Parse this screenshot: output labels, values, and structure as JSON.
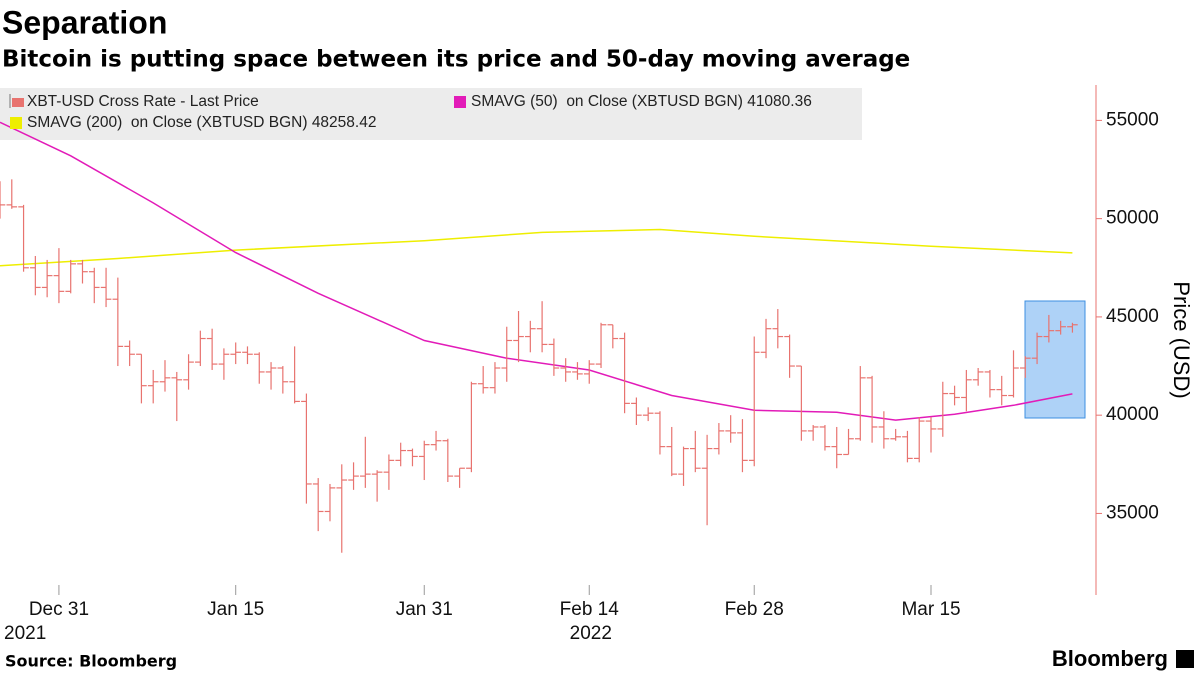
{
  "chart_data": {
    "type": "ohlc",
    "title": "Separation",
    "subtitle": "Bitcoin is putting space between its price and 50-day moving average",
    "y_label": "Price (USD)",
    "source": "Source: Bloomberg",
    "logo": "Bloomberg",
    "x": [
      "2021-12-26",
      "2021-12-27",
      "2021-12-28",
      "2021-12-29",
      "2021-12-30",
      "2021-12-31",
      "2022-01-01",
      "2022-01-02",
      "2022-01-03",
      "2022-01-04",
      "2022-01-05",
      "2022-01-06",
      "2022-01-07",
      "2022-01-08",
      "2022-01-09",
      "2022-01-10",
      "2022-01-11",
      "2022-01-12",
      "2022-01-13",
      "2022-01-14",
      "2022-01-15",
      "2022-01-16",
      "2022-01-17",
      "2022-01-18",
      "2022-01-19",
      "2022-01-20",
      "2022-01-21",
      "2022-01-22",
      "2022-01-23",
      "2022-01-24",
      "2022-01-25",
      "2022-01-26",
      "2022-01-27",
      "2022-01-28",
      "2022-01-29",
      "2022-01-30",
      "2022-01-31",
      "2022-02-01",
      "2022-02-02",
      "2022-02-03",
      "2022-02-04",
      "2022-02-05",
      "2022-02-06",
      "2022-02-07",
      "2022-02-08",
      "2022-02-09",
      "2022-02-10",
      "2022-02-11",
      "2022-02-12",
      "2022-02-13",
      "2022-02-14",
      "2022-02-15",
      "2022-02-16",
      "2022-02-17",
      "2022-02-18",
      "2022-02-19",
      "2022-02-20",
      "2022-02-21",
      "2022-02-22",
      "2022-02-23",
      "2022-02-24",
      "2022-02-25",
      "2022-02-26",
      "2022-02-27",
      "2022-02-28",
      "2022-03-01",
      "2022-03-02",
      "2022-03-03",
      "2022-03-04",
      "2022-03-05",
      "2022-03-06",
      "2022-03-07",
      "2022-03-08",
      "2022-03-09",
      "2022-03-10",
      "2022-03-11",
      "2022-03-12",
      "2022-03-13",
      "2022-03-14",
      "2022-03-15",
      "2022-03-16",
      "2022-03-17",
      "2022-03-18",
      "2022-03-19",
      "2022-03-20",
      "2022-03-21",
      "2022-03-22",
      "2022-03-23",
      "2022-03-24",
      "2022-03-25",
      "2022-03-26",
      "2022-03-27"
    ],
    "series": [
      {
        "name": "XBT-USD Cross Rate - Last Price",
        "color": "#e8736f",
        "ohlc": [
          [
            50800,
            51900,
            50000,
            50700
          ],
          [
            50700,
            52000,
            50500,
            50600
          ],
          [
            50600,
            50700,
            47300,
            47500
          ],
          [
            47500,
            48100,
            46100,
            46500
          ],
          [
            46500,
            47900,
            46000,
            47100
          ],
          [
            47100,
            48500,
            45700,
            46300
          ],
          [
            46300,
            47900,
            46200,
            47700
          ],
          [
            47700,
            47900,
            46700,
            47300
          ],
          [
            47300,
            47500,
            45700,
            46500
          ],
          [
            46500,
            47500,
            45500,
            45900
          ],
          [
            45900,
            47000,
            42500,
            43500
          ],
          [
            43500,
            43800,
            42500,
            43100
          ],
          [
            43100,
            43100,
            40600,
            41500
          ],
          [
            41500,
            42300,
            40600,
            41700
          ],
          [
            41700,
            42800,
            41200,
            41900
          ],
          [
            41900,
            42200,
            39700,
            41800
          ],
          [
            41800,
            43100,
            41300,
            42700
          ],
          [
            42700,
            44300,
            42500,
            43900
          ],
          [
            43900,
            44400,
            42300,
            42600
          ],
          [
            42600,
            43400,
            41800,
            43100
          ],
          [
            43100,
            43700,
            42600,
            43200
          ],
          [
            43200,
            43500,
            42600,
            43100
          ],
          [
            43100,
            43200,
            41600,
            42200
          ],
          [
            42200,
            42700,
            41300,
            42400
          ],
          [
            42400,
            42500,
            41100,
            41700
          ],
          [
            41700,
            43500,
            40600,
            40700
          ],
          [
            40700,
            41100,
            35500,
            36500
          ],
          [
            36500,
            36800,
            34100,
            35100
          ],
          [
            35100,
            36500,
            34600,
            36300
          ],
          [
            36300,
            37500,
            33000,
            36700
          ],
          [
            36700,
            37600,
            36200,
            36900
          ],
          [
            36900,
            38900,
            36300,
            37000
          ],
          [
            37000,
            37200,
            35600,
            37100
          ],
          [
            37100,
            38000,
            36200,
            37700
          ],
          [
            37700,
            38600,
            37400,
            38200
          ],
          [
            38200,
            38300,
            37400,
            37900
          ],
          [
            37900,
            38700,
            36700,
            38500
          ],
          [
            38500,
            39200,
            38200,
            38700
          ],
          [
            38700,
            38800,
            36600,
            36900
          ],
          [
            36900,
            37300,
            36300,
            37300
          ],
          [
            37300,
            41700,
            37100,
            41600
          ],
          [
            41600,
            42500,
            41100,
            41400
          ],
          [
            41400,
            42700,
            41100,
            42400
          ],
          [
            42400,
            44500,
            41700,
            43800
          ],
          [
            43800,
            45300,
            42700,
            44000
          ],
          [
            44000,
            44800,
            43200,
            44400
          ],
          [
            44400,
            45800,
            43200,
            43600
          ],
          [
            43600,
            43900,
            42000,
            42400
          ],
          [
            42400,
            42900,
            41700,
            42200
          ],
          [
            42200,
            42700,
            41800,
            42100
          ],
          [
            42100,
            42800,
            41600,
            42600
          ],
          [
            42600,
            44700,
            42400,
            44600
          ],
          [
            44600,
            44600,
            43400,
            43900
          ],
          [
            43900,
            44200,
            40100,
            40600
          ],
          [
            40600,
            40900,
            39500,
            40000
          ],
          [
            40000,
            40400,
            39700,
            40100
          ],
          [
            40100,
            40200,
            38000,
            38400
          ],
          [
            38400,
            39400,
            36900,
            37000
          ],
          [
            37000,
            38400,
            36400,
            38300
          ],
          [
            38300,
            39200,
            37100,
            37300
          ],
          [
            37300,
            39000,
            34400,
            38300
          ],
          [
            38300,
            39600,
            38000,
            39200
          ],
          [
            39200,
            40000,
            38600,
            39100
          ],
          [
            39100,
            39800,
            37100,
            37700
          ],
          [
            37700,
            44000,
            37400,
            43200
          ],
          [
            43200,
            44900,
            42900,
            44400
          ],
          [
            44400,
            45400,
            43400,
            44000
          ],
          [
            44000,
            44100,
            41900,
            42500
          ],
          [
            42500,
            42500,
            38700,
            39200
          ],
          [
            39200,
            39500,
            38700,
            39400
          ],
          [
            39400,
            39500,
            38200,
            38400
          ],
          [
            38400,
            39400,
            37300,
            38000
          ],
          [
            38000,
            39300,
            38000,
            38800
          ],
          [
            38800,
            42500,
            38700,
            41900
          ],
          [
            41900,
            42000,
            38600,
            39400
          ],
          [
            39400,
            40200,
            38300,
            38800
          ],
          [
            38800,
            39300,
            38700,
            38900
          ],
          [
            38900,
            39200,
            37600,
            37800
          ],
          [
            37800,
            39900,
            37600,
            39700
          ],
          [
            39700,
            39900,
            38100,
            39300
          ],
          [
            39300,
            41700,
            38900,
            41100
          ],
          [
            41100,
            41500,
            40500,
            40900
          ],
          [
            40900,
            42300,
            40200,
            41800
          ],
          [
            41800,
            42400,
            41500,
            42200
          ],
          [
            42200,
            42300,
            40900,
            41300
          ],
          [
            41300,
            42000,
            40500,
            41000
          ],
          [
            41000,
            43300,
            40900,
            42400
          ],
          [
            42400,
            43000,
            41900,
            42900
          ],
          [
            42900,
            44200,
            42600,
            44000
          ],
          [
            44000,
            45100,
            43700,
            44300
          ],
          [
            44300,
            44800,
            44100,
            44500
          ],
          [
            44500,
            44700,
            44200,
            44600
          ]
        ]
      },
      {
        "name": "SMAVG (50)  on Close (XBTUSD BGN) 41080.36",
        "color": "#e21bb8",
        "type": "line",
        "x": [
          "2021-12-26",
          "2022-01-01",
          "2022-01-08",
          "2022-01-15",
          "2022-01-22",
          "2022-01-31",
          "2022-02-07",
          "2022-02-14",
          "2022-02-21",
          "2022-02-28",
          "2022-03-07",
          "2022-03-12",
          "2022-03-17",
          "2022-03-22",
          "2022-03-27"
        ],
        "values": [
          54900,
          53200,
          50800,
          48270,
          46200,
          43800,
          42900,
          42300,
          41000,
          40250,
          40150,
          39750,
          40050,
          40500,
          41080.36
        ]
      },
      {
        "name": "SMAVG (200)  on Close (XBTUSD BGN) 48258.42",
        "color": "#eeee00",
        "type": "line",
        "x": [
          "2021-12-26",
          "2022-01-05",
          "2022-01-15",
          "2022-01-31",
          "2022-02-10",
          "2022-02-20",
          "2022-02-28",
          "2022-03-15",
          "2022-03-27"
        ],
        "values": [
          47600,
          47970,
          48400,
          48880,
          49300,
          49450,
          49100,
          48600,
          48258.42
        ]
      }
    ],
    "xlim": [
      "2021-12-26",
      "2022-03-29"
    ],
    "xticks": [
      {
        "value": "2021-12-31",
        "label": "Dec 31"
      },
      {
        "value": "2022-01-15",
        "label": "Jan 15"
      },
      {
        "value": "2022-01-31",
        "label": "Jan 31"
      },
      {
        "value": "2022-02-14",
        "label": "Feb 14"
      },
      {
        "value": "2022-02-28",
        "label": "Feb 28"
      },
      {
        "value": "2022-03-15",
        "label": "Mar 15"
      }
    ],
    "year_labels": [
      {
        "value": "2021-12-26",
        "label": "2021"
      },
      {
        "value": "2022-02-12",
        "label": "2022"
      }
    ],
    "ylim": [
      30850,
      56800
    ],
    "yticks": [
      35000,
      40000,
      45000,
      50000,
      55000
    ],
    "grid": false
  }
}
